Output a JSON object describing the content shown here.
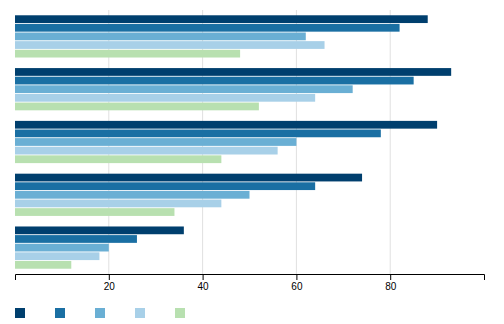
{
  "chart_data": {
    "type": "bar",
    "orientation": "horizontal",
    "categories": [
      null,
      null,
      null,
      null,
      null
    ],
    "series": [
      {
        "color": "#003f6e",
        "values": [
          88,
          93,
          90,
          74,
          36
        ]
      },
      {
        "color": "#1a6fa3",
        "values": [
          82,
          85,
          78,
          64,
          26
        ]
      },
      {
        "color": "#6aafd4",
        "values": [
          62,
          72,
          60,
          50,
          20
        ]
      },
      {
        "color": "#a8d0e8",
        "values": [
          66,
          64,
          56,
          44,
          18
        ]
      },
      {
        "color": "#b8e0b0",
        "values": [
          48,
          52,
          44,
          34,
          12
        ]
      }
    ],
    "xlim": [
      0,
      100
    ],
    "xticks": [
      20,
      40,
      60,
      80
    ],
    "grid": true,
    "tick_labels": "x",
    "legend": "lower left"
  }
}
